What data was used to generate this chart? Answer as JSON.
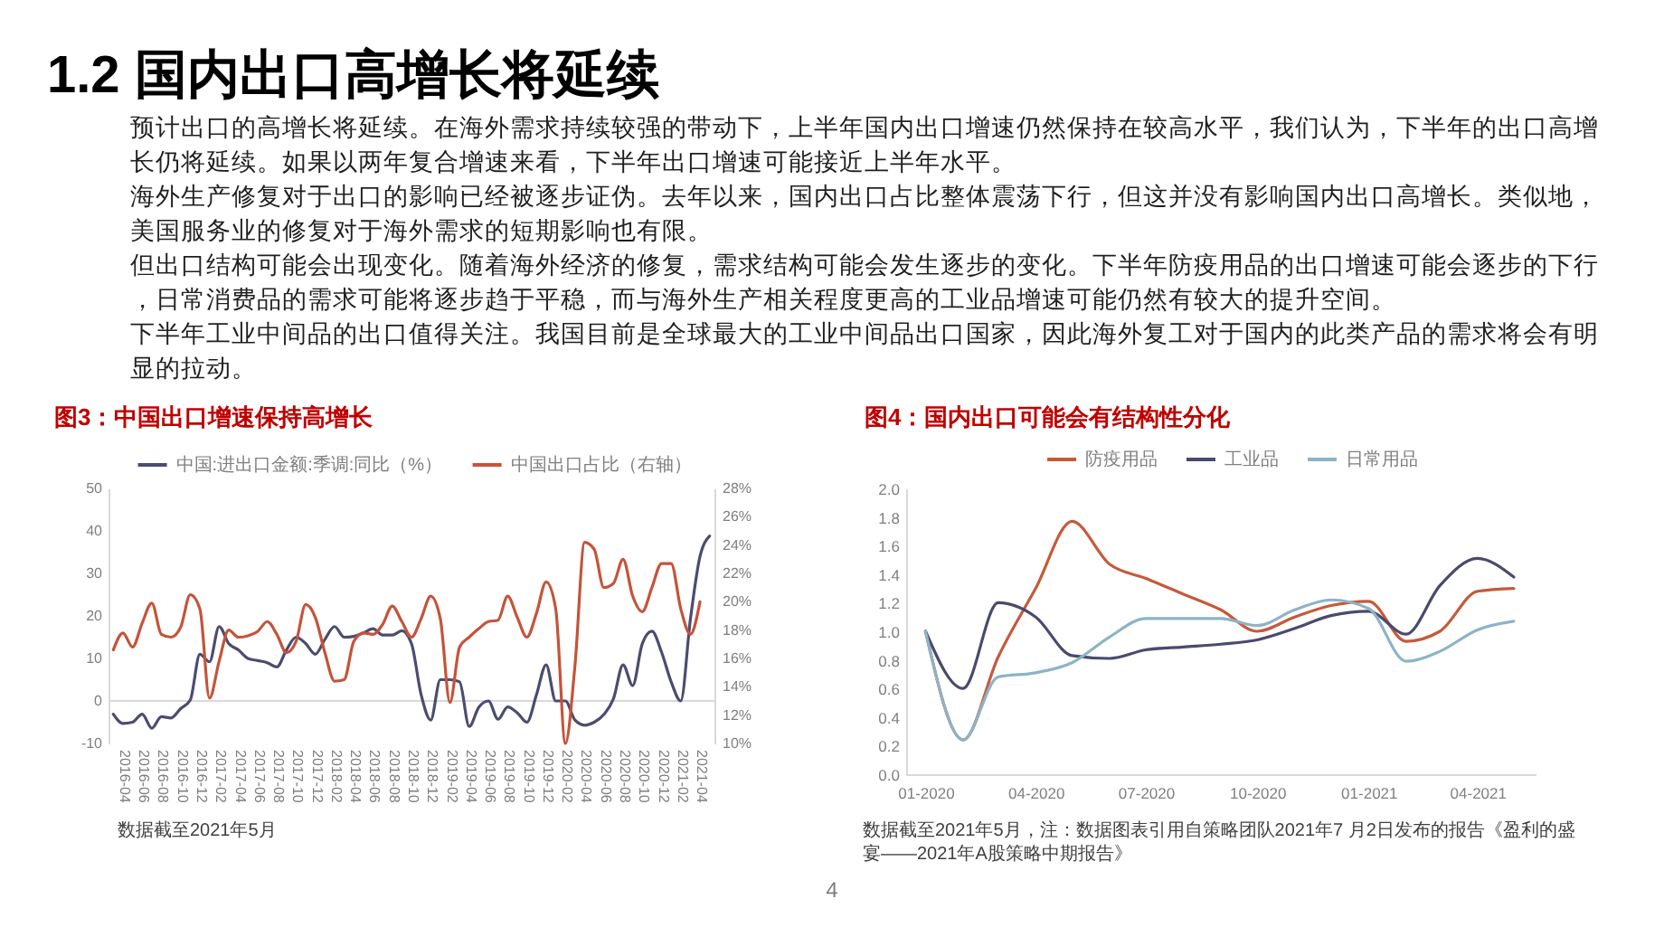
{
  "chart_data": [
    {
      "type": "other",
      "title": "1.2 国内出口高增长将延续",
      "annotations": [
        "预计出口的高增长将延续。在海外需求持续较强的带动下，上半年国内出口增速仍然保持在较高水平，我们认为，下半年的出口高增长仍将延续。如果以两年复合增速来看，下半年出口增速可能接近上半年水平。",
        "海外生产修复对于出口的影响已经被逐步证伪。去年以来，国内出口占比整体震荡下行，但这并没有影响国内出口高增长。类似地，美国服务业的修复对于海外需求的短期影响也有限。",
        "但出口结构可能会出现变化。随着海外经济的修复，需求结构可能会发生逐步的变化。下半年防疫用品的出口增速可能会逐步的下行，日常消费品的需求可能将逐步趋于平稳，而与海外生产相关程度更高的工业品增速可能仍然有较大的提升空间。",
        "下半年工业中间品的出口值得关注。我国目前是全球最大的工业中间品出口国家，因此海外复工对于国内的此类产品的需求将会有明显的拉动。"
      ]
    },
    {
      "type": "line",
      "title": "图3：中国出口增速保持高增长",
      "categories": [
        null,
        "2016-04",
        null,
        "2016-06",
        null,
        "2016-08",
        null,
        "2016-10",
        null,
        "2016-12",
        null,
        "2017-02",
        null,
        "2017-04",
        null,
        "2017-06",
        null,
        "2017-08",
        null,
        "2017-10",
        null,
        "2017-12",
        null,
        "2018-02",
        null,
        "2018-04",
        null,
        "2018-06",
        null,
        "2018-08",
        null,
        "2018-10",
        null,
        "2018-12",
        null,
        "2019-02",
        null,
        "2019-04",
        null,
        "2019-06",
        null,
        "2019-08",
        null,
        "2019-10",
        null,
        "2019-12",
        null,
        "2020-02",
        null,
        "2020-04",
        null,
        "2020-06",
        null,
        "2020-08",
        null,
        "2020-10",
        null,
        "2020-12",
        null,
        "2021-02",
        null,
        "2021-04",
        null
      ],
      "series": [
        {
          "name": "中国:进出口金额:季调:同比（%）",
          "color": "#4b4c70",
          "values": [
            -3.1,
            -5.3,
            -5,
            -3.1,
            -6.4,
            -3.7,
            -4,
            -1.8,
            0.2,
            11,
            9.2,
            17.5,
            13.5,
            12,
            10,
            9.5,
            9,
            8,
            12,
            15,
            13.5,
            11,
            14.5,
            17.5,
            15,
            15.2,
            16,
            17,
            15.5,
            15.5,
            16.5,
            13.5,
            1.5,
            -4.5,
            5,
            5,
            4.5,
            -6,
            -1.5,
            0,
            -4.3,
            -1.4,
            -2.8,
            -5,
            1.5,
            8.5,
            0,
            0,
            -4.5,
            -5.7,
            -5,
            -3.2,
            0.5,
            8.5,
            3.6,
            13.5,
            16.4,
            11.5,
            4.5,
            0,
            19.2,
            34,
            38.8
          ]
        },
        {
          "name": "中国出口占比（右轴）",
          "color": "#c5533a",
          "axis": "y2",
          "values": [
            16.6,
            17.8,
            16.8,
            18.5,
            19.9,
            17.7,
            17.5,
            18.2,
            20.5,
            19.5,
            13.2,
            15.8,
            18,
            17.5,
            17.6,
            17.9,
            18.6,
            17.7,
            16.4,
            17.2,
            19.8,
            18.9,
            16.4,
            14.4,
            14.5,
            17.2,
            17.8,
            17.7,
            18.4,
            19.7,
            18.6,
            17.5,
            18.8,
            20.4,
            18.8,
            12.9,
            16.8,
            17.5,
            18.1,
            18.6,
            18.7,
            20.4,
            18.9,
            17.5,
            19.2,
            21.4,
            19.5,
            10,
            15.5,
            24.2,
            23.7,
            21,
            21.3,
            23,
            20.4,
            19.3,
            21,
            22.7,
            22.7,
            19.5,
            17.7,
            20,
            null
          ]
        }
      ],
      "ylim": [
        -10,
        50
      ],
      "yticks": [
        -10,
        0,
        10,
        20,
        30,
        40,
        50
      ],
      "y2lim": [
        10,
        28
      ],
      "y2ticks": [
        {
          "value": 10,
          "label": "10%"
        },
        {
          "value": 12,
          "label": "12%"
        },
        {
          "value": 14,
          "label": "14%"
        },
        {
          "value": 16,
          "label": "16%"
        },
        {
          "value": 18,
          "label": "18%"
        },
        {
          "value": 20,
          "label": "20%"
        },
        {
          "value": 22,
          "label": "22%"
        },
        {
          "value": 24,
          "label": "24%"
        },
        {
          "value": 26,
          "label": "26%"
        },
        {
          "value": 28,
          "label": "28%"
        }
      ],
      "ref_lines": [
        {
          "axis": "y",
          "value": 0,
          "color": "#d9d9d9"
        }
      ],
      "legend": "top",
      "annotations": [
        "数据截至2021年5月"
      ]
    },
    {
      "type": "line",
      "title": "图4：国内出口可能会有结构性分化",
      "x": [
        "2020-01",
        "2020-02",
        "2020-03",
        "2020-04",
        "2020-05",
        "2020-06",
        "2020-07",
        "2020-08",
        "2020-09",
        "2020-10",
        "2020-11",
        "2020-12",
        "2021-01",
        "2021-02",
        "2021-03",
        "2021-04",
        "2021-05"
      ],
      "series": [
        {
          "name": "防疫用品",
          "color": "#c55a3b",
          "values": [
            1.0,
            0.24,
            0.82,
            1.3,
            1.77,
            1.47,
            1.37,
            1.26,
            1.15,
            1.0,
            1.1,
            1.18,
            1.21,
            0.93,
            1.0,
            1.28,
            1.3
          ]
        },
        {
          "name": "工业品",
          "color": "#4a4a6e",
          "values": [
            1.0,
            0.6,
            1.2,
            1.1,
            0.83,
            0.81,
            0.87,
            0.89,
            0.91,
            0.94,
            1.02,
            1.11,
            1.14,
            0.98,
            1.32,
            1.51,
            1.38
          ]
        },
        {
          "name": "日常用品",
          "color": "#8db3c7",
          "values": [
            1.0,
            0.24,
            0.68,
            0.71,
            0.78,
            0.96,
            1.09,
            1.09,
            1.09,
            1.04,
            1.15,
            1.22,
            1.16,
            0.79,
            0.86,
            1.01,
            1.07
          ]
        }
      ],
      "xlim": [
        "2019-12-16",
        "2021-05-19"
      ],
      "xticks": [
        {
          "value": "2020-01",
          "label": "01-2020"
        },
        {
          "value": "2020-04",
          "label": "04-2020"
        },
        {
          "value": "2020-07",
          "label": "07-2020"
        },
        {
          "value": "2020-10",
          "label": "10-2020"
        },
        {
          "value": "2021-01",
          "label": "01-2021"
        },
        {
          "value": "2021-04",
          "label": "04-2021"
        }
      ],
      "ylim": [
        0,
        2
      ],
      "yticks": [
        {
          "value": 0,
          "label": "0.0"
        },
        0.2,
        0.4,
        0.6,
        0.8,
        {
          "value": 1,
          "label": "1.0"
        },
        1.2,
        1.4,
        1.6,
        1.8,
        {
          "value": 2,
          "label": "2.0"
        }
      ],
      "legend": "top",
      "annotations": [
        "数据截至2021年5月，注：数据图表引用自策略团队2021年7 月2日发布的报告《盈利的盛宴——2021年A股策略中期报告》"
      ]
    },
    {
      "type": "other",
      "annotations": [
        "4"
      ]
    }
  ]
}
